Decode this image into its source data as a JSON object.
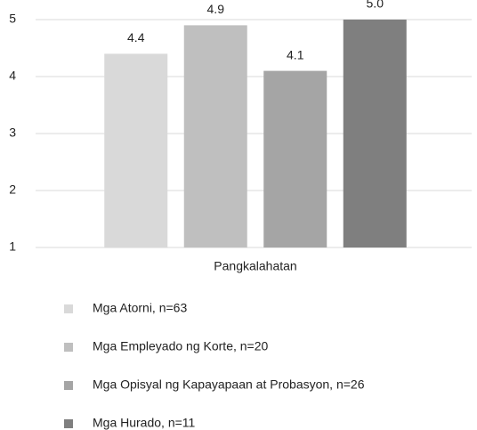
{
  "chart_data": {
    "type": "bar",
    "categories": [
      "Pangkalahatan"
    ],
    "series": [
      {
        "name": "Mga Atorni, n=63",
        "color": "#d9d9d9",
        "values": [
          4.4
        ]
      },
      {
        "name": "Mga Empleyado ng Korte, n=20",
        "color": "#bfbfbf",
        "values": [
          4.9
        ]
      },
      {
        "name": "Mga Opisyal ng Kapayapaan at Probasyon, n=26",
        "color": "#a5a5a5",
        "values": [
          4.1
        ]
      },
      {
        "name": "Mga Hurado, n=11",
        "color": "#7f7f7f",
        "values": [
          5
        ],
        "value_labels": [
          "5.0"
        ]
      }
    ],
    "ylim": [
      1,
      5
    ],
    "yticks": [
      1,
      2,
      3,
      4,
      5
    ],
    "grid": true,
    "legend": "bottom"
  }
}
